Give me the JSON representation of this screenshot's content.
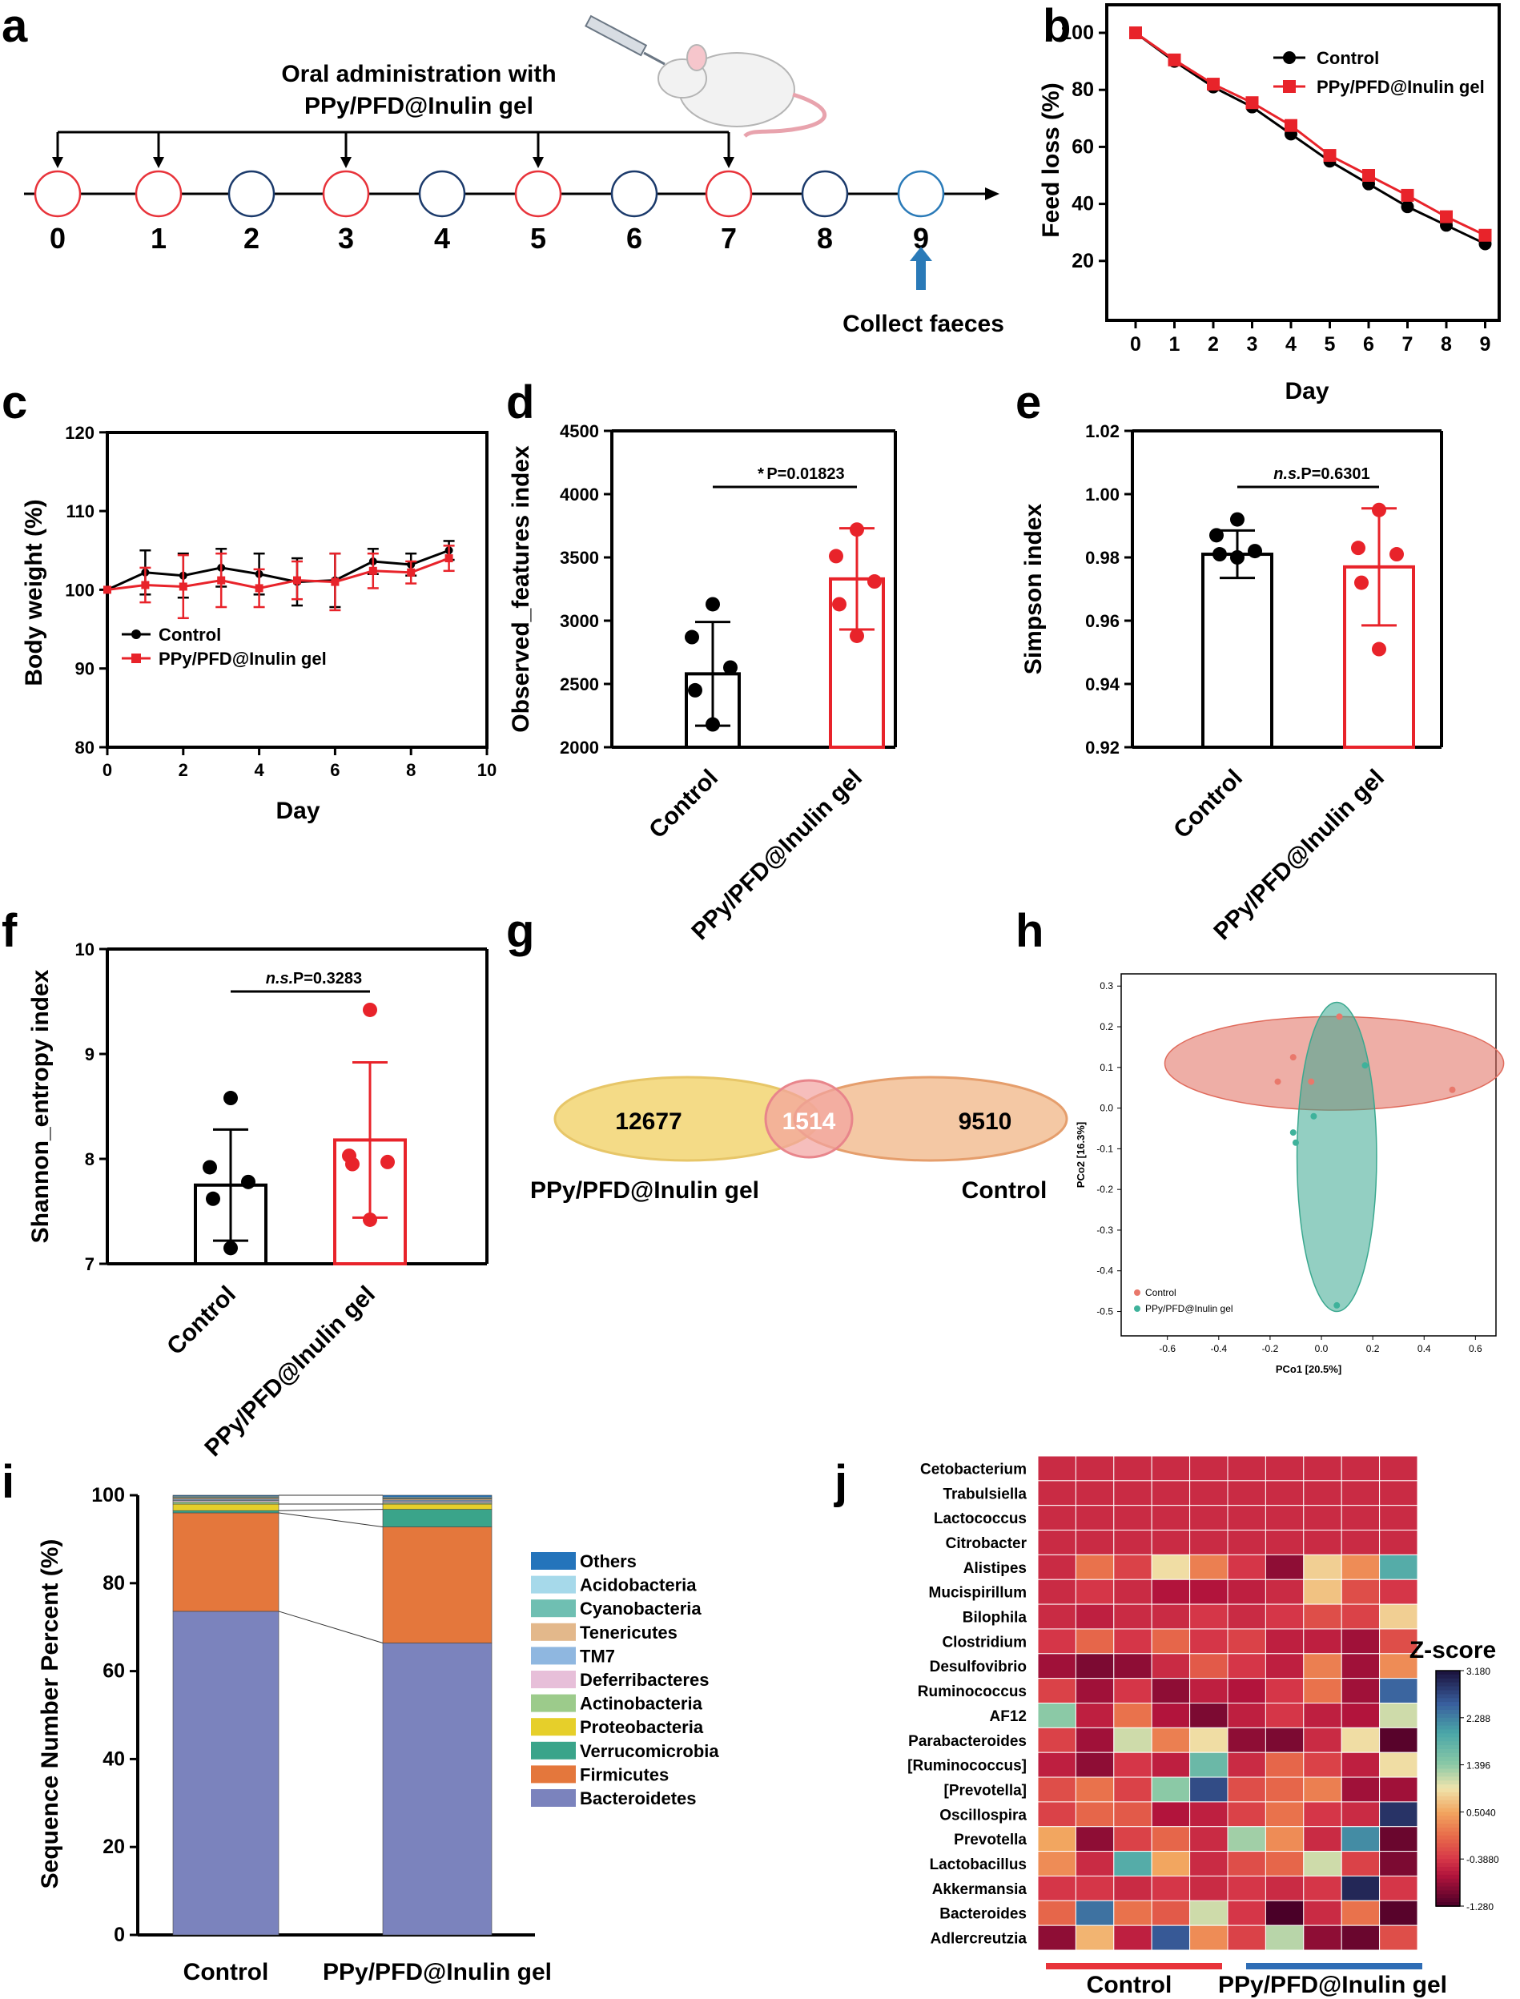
{
  "panel_labels": [
    "a",
    "b",
    "c",
    "d",
    "e",
    "f",
    "g",
    "h",
    "i",
    "j"
  ],
  "timeline": {
    "title_line1": "Oral administration with",
    "title_line2": "PPy/PFD@Inulin gel",
    "days": [
      "0",
      "1",
      "2",
      "3",
      "4",
      "5",
      "6",
      "7",
      "8",
      "9"
    ],
    "dosed_days": [
      0,
      1,
      3,
      5,
      7
    ],
    "collect_label": "Collect faeces",
    "dosed_color": "#e8333a",
    "undosed_color": "#1b3a6b",
    "collect_color": "#2a7ab8"
  },
  "colors": {
    "control": "#000000",
    "treat": "#e8232a"
  },
  "chart_data": [
    {
      "id": "b",
      "type": "line",
      "xlabel": "Day",
      "ylabel": "Feed loss (%)",
      "x": [
        0,
        1,
        2,
        3,
        4,
        5,
        6,
        7,
        8,
        9
      ],
      "xticks": [
        "0",
        "1",
        "2",
        "3",
        "4",
        "5",
        "6",
        "7",
        "8",
        "9"
      ],
      "yticks": [
        "20",
        "40",
        "60",
        "80",
        "100"
      ],
      "ylim": [
        0,
        104
      ],
      "series": [
        {
          "name": "Control",
          "values": [
            100,
            90,
            81,
            74,
            64.5,
            55,
            47,
            39,
            32.5,
            26
          ]
        },
        {
          "name": "PPy/PFD@Inulin gel",
          "values": [
            100,
            90.5,
            82,
            75.5,
            67.5,
            57,
            50,
            43,
            35.5,
            29
          ]
        }
      ]
    },
    {
      "id": "c",
      "type": "line",
      "xlabel": "Day",
      "ylabel": "Body weight (%)",
      "x": [
        0,
        1,
        2,
        3,
        4,
        5,
        6,
        7,
        8,
        9
      ],
      "xticks": [
        "0",
        "2",
        "4",
        "6",
        "8",
        "10"
      ],
      "yticks": [
        "80",
        "90",
        "100",
        "110",
        "120"
      ],
      "ylim": [
        80,
        120
      ],
      "xlim": [
        0,
        10
      ],
      "series": [
        {
          "name": "Control",
          "values": [
            100,
            102.2,
            101.8,
            102.8,
            102,
            101,
            101.2,
            103.6,
            103.2,
            105
          ],
          "err": [
            0,
            2.8,
            2.8,
            2.4,
            2.6,
            3,
            3.4,
            1.6,
            1.4,
            1.2
          ]
        },
        {
          "name": "PPy/PFD@Inulin gel",
          "values": [
            100,
            100.6,
            100.4,
            101.2,
            100.2,
            101.2,
            101,
            102.4,
            102.2,
            104
          ],
          "err": [
            0,
            2.2,
            4,
            3.4,
            2.4,
            2.4,
            3.6,
            2.2,
            1.4,
            1.6
          ]
        }
      ]
    },
    {
      "id": "d",
      "type": "bar",
      "ylabel": "Observed_features index",
      "categories": [
        "Control",
        "PPy/PFD@Inulin gel"
      ],
      "ylim": [
        2000,
        4500
      ],
      "yticks": [
        "2000",
        "2500",
        "3000",
        "3500",
        "4000",
        "4500"
      ],
      "values": [
        2580,
        3330
      ],
      "err": [
        410,
        400
      ],
      "points": [
        [
          3130,
          2870,
          2630,
          2450,
          2180
        ],
        [
          3720,
          3510,
          3310,
          3130,
          2880
        ]
      ],
      "annotation_sig": "*",
      "annotation_p": "P=0.01823"
    },
    {
      "id": "e",
      "type": "bar",
      "ylabel": "Simpson index",
      "categories": [
        "Control",
        "PPy/PFD@Inulin gel"
      ],
      "ylim": [
        0.92,
        1.02
      ],
      "yticks": [
        "0.92",
        "0.94",
        "0.96",
        "0.98",
        "1.00",
        "1.02"
      ],
      "values": [
        0.981,
        0.977
      ],
      "err": [
        0.0075,
        0.0185
      ],
      "points": [
        [
          0.992,
          0.987,
          0.982,
          0.981,
          0.98
        ],
        [
          0.995,
          0.983,
          0.981,
          0.972,
          0.951
        ]
      ],
      "annotation_sig": "n.s.",
      "annotation_p": "P=0.6301"
    },
    {
      "id": "f",
      "type": "bar",
      "ylabel": "Shannon_entropy index",
      "categories": [
        "Control",
        "PPy/PFD@Inulin gel"
      ],
      "ylim": [
        7,
        10
      ],
      "yticks": [
        "7",
        "8",
        "9",
        "10"
      ],
      "values": [
        7.75,
        8.18
      ],
      "err": [
        0.53,
        0.74
      ],
      "points": [
        [
          8.58,
          7.92,
          7.78,
          7.62,
          7.15
        ],
        [
          9.42,
          8.03,
          7.97,
          7.95,
          7.42
        ]
      ],
      "annotation_sig": "n.s.",
      "annotation_p": "P=0.3283"
    },
    {
      "id": "g",
      "type": "venn",
      "sets": [
        {
          "name": "PPy/PFD@Inulin gel",
          "unique": "12677",
          "color": "#f3d77a"
        },
        {
          "name": "Control",
          "unique": "9510",
          "color": "#f0b585"
        }
      ],
      "intersection": "1514"
    },
    {
      "id": "h",
      "type": "scatter",
      "xlabel": "PCo1 [20.5%]",
      "ylabel": "PCo2 [16.3%]",
      "xticks": [
        "-0.6",
        "-0.4",
        "-0.2",
        "0.0",
        "0.2",
        "0.4",
        "0.6"
      ],
      "yticks": [
        "-0.5",
        "-0.4",
        "-0.3",
        "-0.2",
        "-0.1",
        "0.0",
        "0.1",
        "0.2",
        "0.3"
      ],
      "xlim": [
        -0.78,
        0.68
      ],
      "ylim": [
        -0.56,
        0.33
      ],
      "series": [
        {
          "name": "Control",
          "color": "#e9786b",
          "points": [
            [
              0.07,
              0.225
            ],
            [
              -0.11,
              0.125
            ],
            [
              -0.17,
              0.065
            ],
            [
              -0.04,
              0.065
            ],
            [
              0.51,
              0.045
            ]
          ]
        },
        {
          "name": "PPy/PFD@Inulin gel",
          "color": "#3fb29b",
          "points": [
            [
              0.17,
              0.105
            ],
            [
              -0.03,
              -0.02
            ],
            [
              -0.11,
              -0.06
            ],
            [
              -0.1,
              -0.085
            ],
            [
              0.06,
              -0.485
            ]
          ]
        }
      ],
      "ellipses": [
        {
          "name": "Control",
          "cx": 0.05,
          "cy": 0.11,
          "rx": 0.66,
          "ry": 0.115,
          "color": "#e06b5c"
        },
        {
          "name": "PPy/PFD@Inulin gel",
          "cx": 0.06,
          "cy": -0.12,
          "rx": 0.155,
          "ry": 0.38,
          "color": "#3aa88f"
        }
      ]
    },
    {
      "id": "i",
      "type": "stacked_bar",
      "ylabel": "Sequence Number Percent (%)",
      "categories": [
        "Control",
        "PPy/PFD@Inulin gel"
      ],
      "yticks": [
        "0",
        "20",
        "40",
        "60",
        "80",
        "100"
      ],
      "ylim": [
        0,
        100
      ],
      "series": [
        {
          "name": "Bacteroidetes",
          "color": "#7b83bd",
          "values": [
            73.6,
            66.4
          ]
        },
        {
          "name": "Firmicutes",
          "color": "#e4773c",
          "values": [
            22.4,
            26.4
          ]
        },
        {
          "name": "Verrucomicrobia",
          "color": "#3aa48a",
          "values": [
            0.5,
            4.0
          ]
        },
        {
          "name": "Proteobacteria",
          "color": "#e6cf2a",
          "values": [
            1.5,
            1.2
          ]
        },
        {
          "name": "Actinobacteria",
          "color": "#9ccb8b",
          "values": [
            0.5,
            0.3
          ]
        },
        {
          "name": "Deferribacteres",
          "color": "#e7bfd9",
          "values": [
            0.3,
            0.3
          ]
        },
        {
          "name": "TM7",
          "color": "#8fb7e0",
          "values": [
            0.3,
            0.3
          ]
        },
        {
          "name": "Tenericutes",
          "color": "#e3b88b",
          "values": [
            0.3,
            0.3
          ]
        },
        {
          "name": "Cyanobacteria",
          "color": "#6fbfb2",
          "values": [
            0.2,
            0.2
          ]
        },
        {
          "name": "Acidobacteria",
          "color": "#a6d9ea",
          "values": [
            0.2,
            0.2
          ]
        },
        {
          "name": "Others",
          "color": "#2474bb",
          "values": [
            0.2,
            0.4
          ]
        }
      ]
    },
    {
      "id": "j",
      "type": "heatmap",
      "rows": [
        "Cetobacterium",
        "Trabulsiella",
        "Lactococcus",
        "Citrobacter",
        "Alistipes",
        "Mucispirillum",
        "Bilophila",
        "Clostridium",
        "Desulfovibrio",
        "Ruminococcus",
        "AF12",
        "Parabacteroides",
        "[Ruminococcus]",
        "[Prevotella]",
        "Oscillospira",
        "Prevotella",
        "Lactobacillus",
        "Akkermansia",
        "Bacteroides",
        "Adlercreutzia"
      ],
      "group_labels": [
        "Control",
        "PPy/PFD@Inulin gel"
      ],
      "group_colors": [
        "#e8333a",
        "#2f6db5"
      ],
      "colorbar_title": "Z-score",
      "colorbar_ticks": [
        "3.180",
        "2.288",
        "1.396",
        "0.5040",
        "-0.3880",
        "-1.280"
      ],
      "zlim": [
        -1.28,
        3.18
      ],
      "values": [
        [
          -0.5,
          -0.5,
          -0.5,
          -0.5,
          -0.5,
          -0.5,
          -0.5,
          -0.5,
          -0.5,
          -0.5
        ],
        [
          -0.5,
          -0.5,
          -0.5,
          -0.5,
          -0.5,
          -0.5,
          -0.5,
          -0.5,
          -0.5,
          -0.5
        ],
        [
          -0.5,
          -0.5,
          -0.5,
          -0.5,
          -0.5,
          -0.5,
          -0.5,
          -0.5,
          -0.5,
          -0.5
        ],
        [
          -0.5,
          -0.5,
          -0.5,
          -0.5,
          -0.5,
          -0.5,
          -0.5,
          -0.5,
          -0.5,
          -0.5
        ],
        [
          -0.5,
          0.1,
          -0.3,
          0.9,
          0.2,
          -0.4,
          -0.9,
          0.8,
          0.3,
          1.9
        ],
        [
          -0.5,
          -0.4,
          -0.5,
          -0.7,
          -0.7,
          -0.6,
          -0.5,
          0.7,
          -0.2,
          -0.4
        ],
        [
          -0.5,
          -0.6,
          -0.5,
          -0.5,
          -0.4,
          -0.5,
          -0.4,
          -0.2,
          -0.3,
          0.8
        ],
        [
          -0.4,
          0.0,
          -0.4,
          0.0,
          -0.4,
          -0.3,
          -0.6,
          -0.6,
          -0.8,
          -0.2
        ],
        [
          -0.8,
          -1.0,
          -0.9,
          -0.5,
          -0.1,
          -0.4,
          -0.6,
          0.2,
          -0.8,
          0.3
        ],
        [
          -0.3,
          -0.8,
          -0.4,
          -0.9,
          -0.6,
          -0.7,
          -0.4,
          0.1,
          -0.8,
          2.5
        ],
        [
          1.4,
          -0.6,
          0.1,
          -0.7,
          -1.0,
          -0.6,
          -0.4,
          -0.6,
          -0.7,
          1.1
        ],
        [
          -0.3,
          -0.8,
          1.1,
          0.2,
          0.9,
          -0.9,
          -1.0,
          -0.5,
          0.9,
          -1.2
        ],
        [
          -0.6,
          -0.9,
          -0.4,
          -0.6,
          1.7,
          -0.5,
          0.0,
          -0.3,
          -0.6,
          0.9
        ],
        [
          -0.2,
          0.1,
          -0.3,
          1.4,
          2.7,
          -0.2,
          0.0,
          0.2,
          -0.8,
          -0.8
        ],
        [
          -0.3,
          0.0,
          -0.1,
          -0.7,
          -0.6,
          -0.3,
          0.1,
          -0.4,
          -0.5,
          2.9
        ],
        [
          0.5,
          -0.9,
          -0.3,
          0.0,
          -0.5,
          1.3,
          0.3,
          -0.5,
          2.2,
          -1.1
        ],
        [
          0.3,
          -0.5,
          1.9,
          0.5,
          -0.5,
          -0.2,
          0.0,
          1.1,
          -0.3,
          -1.0
        ],
        [
          -0.4,
          -0.4,
          -0.5,
          -0.4,
          -0.5,
          -0.4,
          -0.5,
          -0.4,
          3.0,
          -0.4
        ],
        [
          0.0,
          2.4,
          0.1,
          -0.1,
          1.1,
          -0.4,
          -1.3,
          -0.5,
          0.1,
          -1.2
        ],
        [
          -0.9,
          0.6,
          -0.6,
          2.6,
          0.3,
          -0.3,
          1.2,
          -0.9,
          -1.1,
          -0.2
        ]
      ]
    }
  ]
}
